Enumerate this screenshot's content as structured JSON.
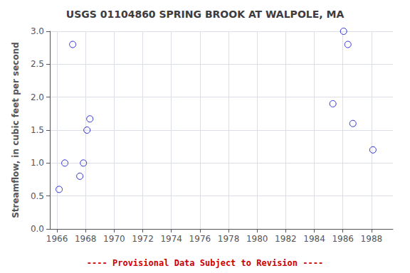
{
  "chart_data": {
    "type": "scatter",
    "title": "USGS 01104860 SPRING BROOK AT WALPOLE, MA",
    "ylabel": "Streamflow, in cubic feet per second",
    "annotations": [
      {
        "text": "---- Provisional Data Subject to Revision ----",
        "color": "#cc0000"
      }
    ],
    "x": [
      1966.15,
      1966.55,
      1967.1,
      1967.6,
      1967.85,
      1968.1,
      1968.3,
      1985.3,
      1986.05,
      1986.35,
      1986.7,
      1988.1
    ],
    "values": [
      0.6,
      1.0,
      2.8,
      0.8,
      1.0,
      1.5,
      1.67,
      1.9,
      3.0,
      2.8,
      1.6,
      1.2
    ],
    "color": "#0000cc",
    "marker": "open-circle",
    "xlim": [
      1965.5,
      1989.5
    ],
    "ylim": [
      0.0,
      3.0
    ],
    "xticks": [
      1966,
      1968,
      1970,
      1972,
      1974,
      1976,
      1978,
      1980,
      1982,
      1984,
      1986,
      1988
    ],
    "yticks": [
      {
        "value": 0.0,
        "label": "0.0"
      },
      0.5,
      {
        "value": 1.0,
        "label": "1.0"
      },
      1.5,
      {
        "value": 2.0,
        "label": "2.0"
      },
      2.5,
      {
        "value": 3.0,
        "label": "3.0"
      }
    ],
    "grid": true
  }
}
